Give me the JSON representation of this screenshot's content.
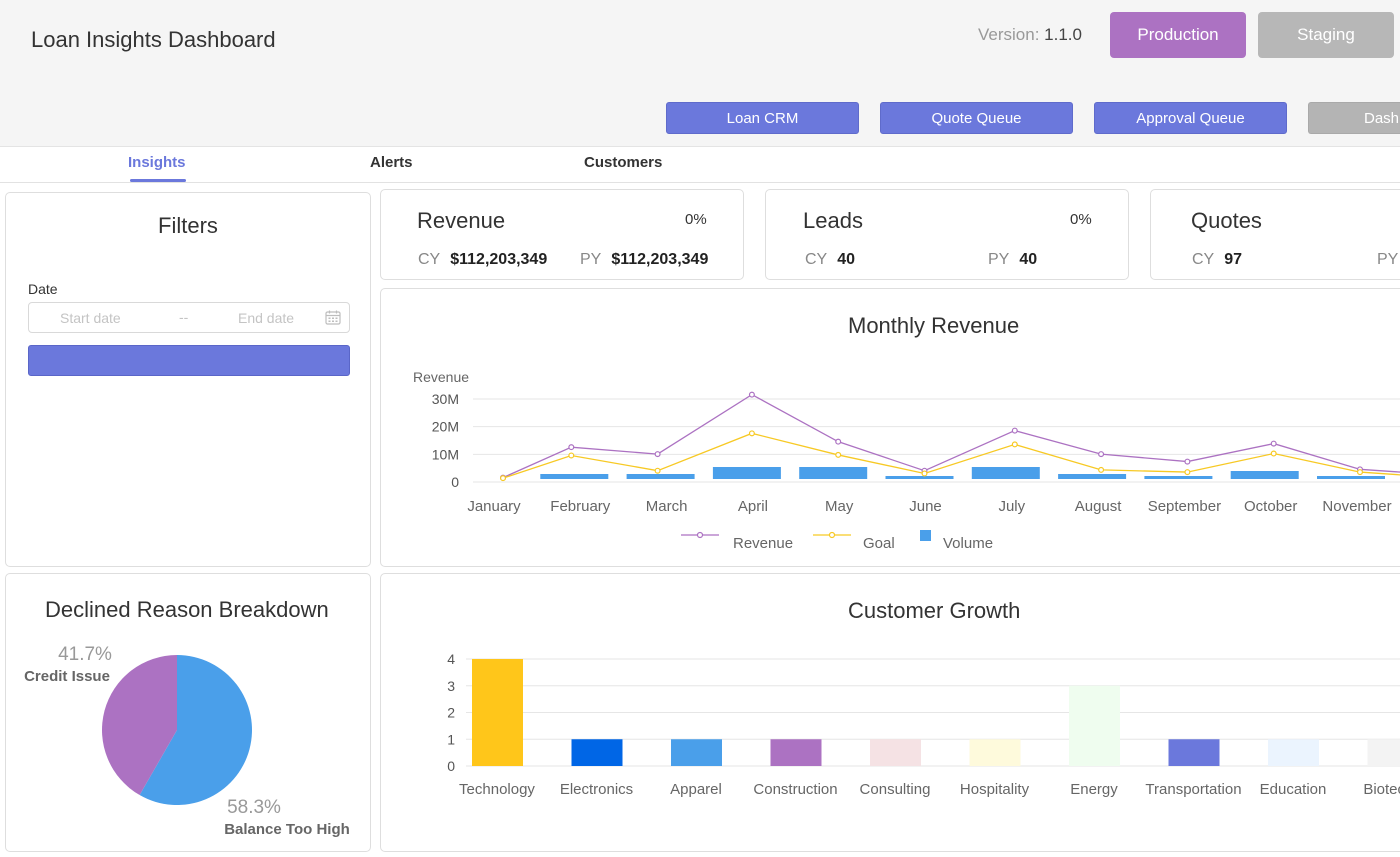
{
  "header": {
    "title": "Loan Insights Dashboard",
    "version_label": "Version:",
    "version_value": "1.1.0",
    "env_buttons": [
      "Production",
      "Staging"
    ],
    "nav_buttons": [
      "Loan CRM",
      "Quote Queue",
      "Approval Queue",
      "Dash"
    ],
    "colors": {
      "production": "#ac72c2",
      "staging": "#b7b7b7",
      "nav": "#6b78dc"
    }
  },
  "tabs": [
    {
      "label": "Insights",
      "active": true
    },
    {
      "label": "Alerts",
      "active": false
    },
    {
      "label": "Customers",
      "active": false
    }
  ],
  "filters": {
    "title": "Filters",
    "date_label": "Date",
    "start_placeholder": "Start date",
    "separator": "--",
    "end_placeholder": "End date",
    "calendar_icon": "calendar-icon"
  },
  "kpis": [
    {
      "title": "Revenue",
      "pct": "0%",
      "cy_label": "CY",
      "cy_value": "$112,203,349",
      "py_label": "PY",
      "py_value": "$112,203,349"
    },
    {
      "title": "Leads",
      "pct": "0%",
      "cy_label": "CY",
      "cy_value": "40",
      "py_label": "PY",
      "py_value": "40"
    },
    {
      "title": "Quotes",
      "pct": "",
      "cy_label": "CY",
      "cy_value": "97",
      "py_label": "PY",
      "py_value": ""
    }
  ],
  "monthly_revenue": {
    "title": "Monthly Revenue",
    "legend": [
      "Revenue",
      "Goal",
      "Volume"
    ],
    "chart_data": {
      "type": "bar",
      "title": "Monthly Revenue",
      "ylabel": "Revenue",
      "ylim": [
        0,
        30000000
      ],
      "y_ticks": [
        "0",
        "10M",
        "20M",
        "30M"
      ],
      "grid": true,
      "legend_position": "bottom",
      "categories": [
        "January",
        "February",
        "March",
        "April",
        "May",
        "June",
        "July",
        "August",
        "September",
        "October",
        "November"
      ],
      "series": [
        {
          "name": "Revenue",
          "kind": "line",
          "color": "#ac72c2",
          "values": [
            0.5,
            11.5,
            9,
            30.5,
            13.5,
            3,
            17.5,
            9,
            6.3,
            12.8,
            3.5
          ]
        },
        {
          "name": "Goal",
          "kind": "line",
          "color": "#f7c924",
          "values": [
            0.3,
            8.5,
            3,
            16.5,
            8.7,
            2,
            12.5,
            3.3,
            2.5,
            9.2,
            2.5
          ]
        },
        {
          "name": "Volume",
          "kind": "bar",
          "color": "#4a9fea",
          "values": [
            0,
            2,
            2,
            4.5,
            4.5,
            1,
            4.5,
            2,
            1,
            3,
            1
          ]
        }
      ],
      "value_scale": 1000000
    }
  },
  "declined": {
    "title": "Declined Reason Breakdown",
    "chart_data": {
      "type": "pie",
      "slices": [
        {
          "label": "Credit Issue",
          "value": 41.7,
          "pct_label": "41.7%",
          "color": "#ac72c2"
        },
        {
          "label": "Balance Too High",
          "value": 58.3,
          "pct_label": "58.3%",
          "color": "#4a9fea"
        }
      ]
    }
  },
  "customer_growth": {
    "title": "Customer Growth",
    "chart_data": {
      "type": "bar",
      "title": "Customer Growth",
      "ylim": [
        0,
        4
      ],
      "y_ticks": [
        "0",
        "1",
        "2",
        "3",
        "4"
      ],
      "grid": true,
      "categories": [
        "Technology",
        "Electronics",
        "Apparel",
        "Construction",
        "Consulting",
        "Hospitality",
        "Energy",
        "Transportation",
        "Education",
        "Biotechn"
      ],
      "values": [
        4,
        1,
        1,
        1,
        1,
        1,
        3,
        1,
        1,
        1
      ],
      "colors": [
        "#ffc61a",
        "#0066e6",
        "#4a9fea",
        "#ac72c2",
        "#f5e2e4",
        "#fefadc",
        "#effdef",
        "#6b78dc",
        "#ebf4fe",
        "#f3f3f3"
      ]
    }
  }
}
